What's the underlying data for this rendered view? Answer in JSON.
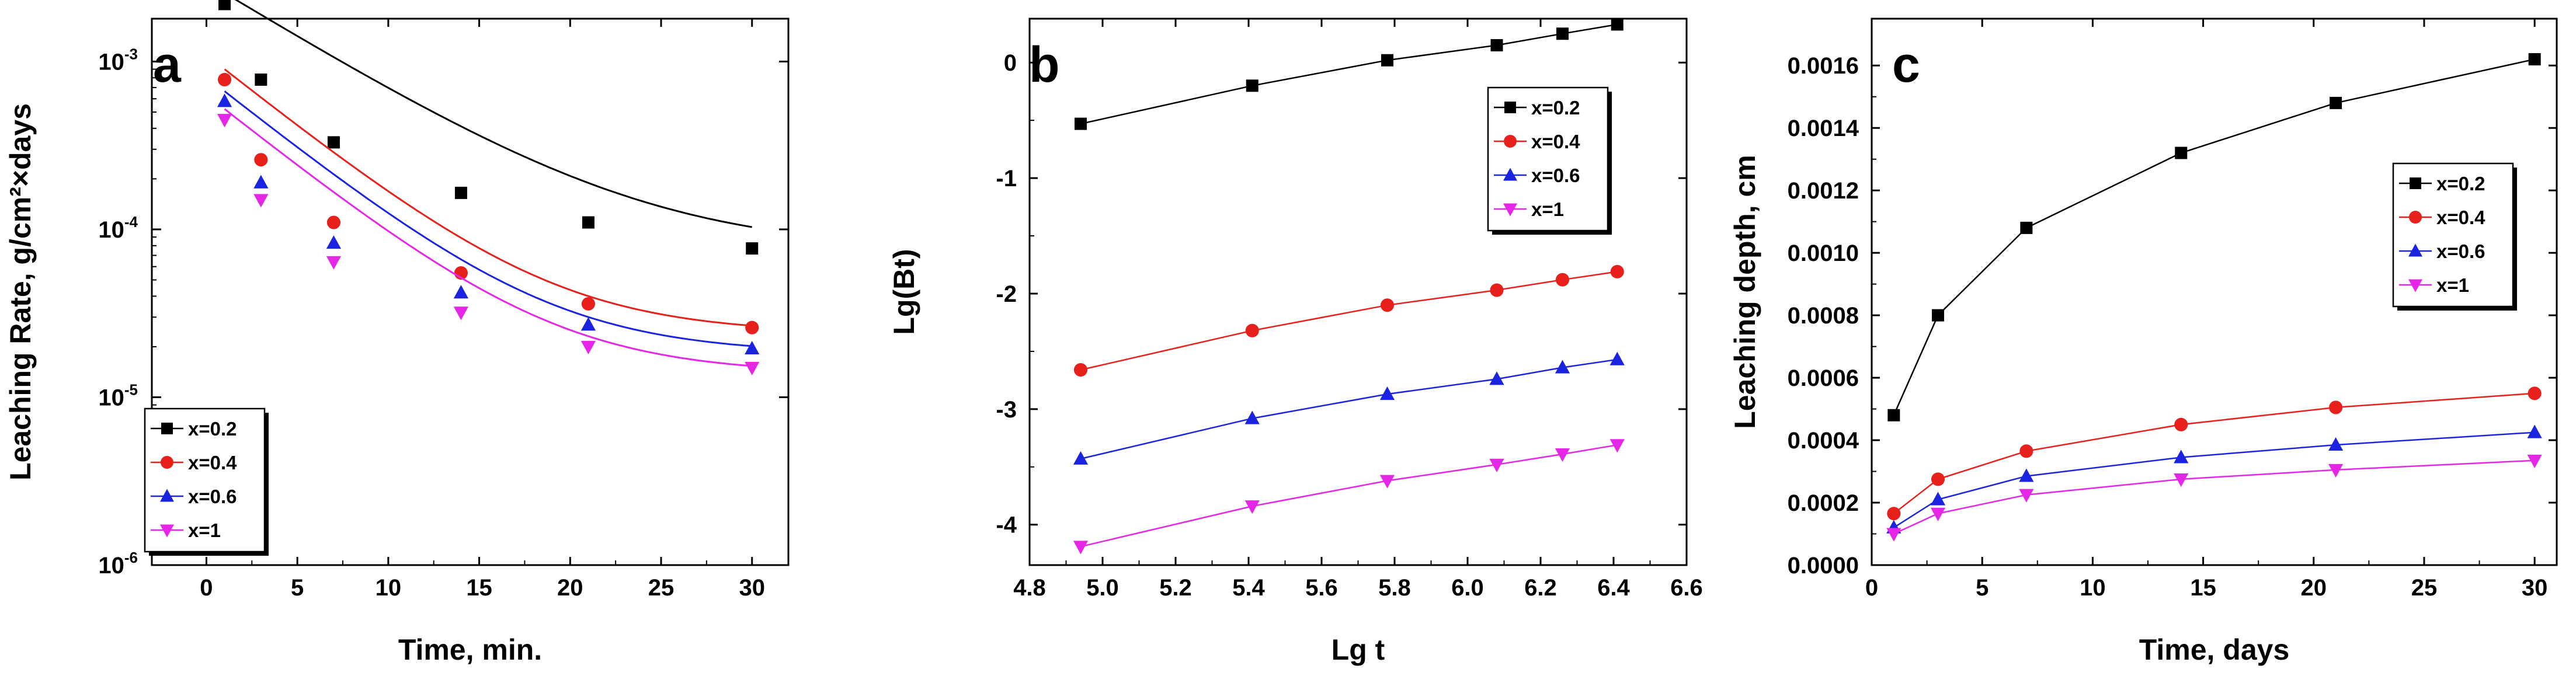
{
  "colors": {
    "x=0.2": "#000000",
    "x=0.4": "#e8201c",
    "x=0.6": "#1a24e0",
    "x=1": "#e626e6"
  },
  "chart_data": [
    {
      "panel": "a",
      "type": "scatter",
      "yscale": "log",
      "xlabel": "Time, min.",
      "ylabel": "Leaching Rate, g/cm²×days",
      "xlim": [
        -3,
        32
      ],
      "ylim": [
        1e-06,
        0.0018
      ],
      "xticks": [
        "0",
        "5",
        "10",
        "15",
        "20",
        "25",
        "30"
      ],
      "yticks": [
        {
          "value": 1e-06,
          "base": "10",
          "exp": "-6"
        },
        {
          "value": 1e-05,
          "base": "10",
          "exp": "-5"
        },
        {
          "value": 0.0001,
          "base": "10",
          "exp": "-4"
        },
        {
          "value": 0.001,
          "base": "10",
          "exp": "-3"
        }
      ],
      "legend_position": "bottom-left",
      "series": [
        {
          "name": "x=0.2",
          "marker": "square",
          "x": [
            1,
            3,
            7,
            14,
            21,
            30
          ],
          "y": [
            0.0022,
            0.00078,
            0.00033,
            0.000165,
            0.00011,
            7.7e-05
          ],
          "fit": {
            "a": 7.45e-05,
            "b": 0.0029,
            "tau": 6.5
          }
        },
        {
          "name": "x=0.4",
          "marker": "circle",
          "x": [
            1,
            3,
            7,
            14,
            21,
            30
          ],
          "y": [
            0.00078,
            0.00026,
            0.00011,
            5.5e-05,
            3.6e-05,
            2.6e-05
          ],
          "fit": {
            "a": 2.4e-05,
            "b": 0.00107,
            "tau": 5.0
          }
        },
        {
          "name": "x=0.6",
          "marker": "triangle-up",
          "x": [
            1,
            3,
            7,
            14,
            21,
            30
          ],
          "y": [
            0.00058,
            0.00019,
            8.3e-05,
            4.2e-05,
            2.7e-05,
            1.95e-05
          ],
          "fit": {
            "a": 1.82e-05,
            "b": 0.00079,
            "tau": 5.0
          }
        },
        {
          "name": "x=1",
          "marker": "triangle-down",
          "x": [
            1,
            3,
            7,
            14,
            21,
            30
          ],
          "y": [
            0.00045,
            0.00015,
            6.4e-05,
            3.2e-05,
            2e-05,
            1.5e-05
          ],
          "fit": {
            "a": 1.38e-05,
            "b": 0.00062,
            "tau": 5.0
          }
        }
      ]
    },
    {
      "panel": "b",
      "type": "line",
      "xlabel": "Lg t",
      "ylabel": "Lg(Bt)",
      "xlim": [
        4.8,
        6.6
      ],
      "ylim": [
        -4.35,
        0.38
      ],
      "xticks": [
        "4.8",
        "5.0",
        "5.2",
        "5.4",
        "5.6",
        "5.8",
        "6.0",
        "6.2",
        "6.4",
        "6.6"
      ],
      "yticks": [
        "-4",
        "-3",
        "-2",
        "-1",
        "0"
      ],
      "legend_position": "top-right",
      "series": [
        {
          "name": "x=0.2",
          "marker": "square",
          "x": [
            4.94,
            5.41,
            5.78,
            6.08,
            6.26,
            6.41
          ],
          "y": [
            -0.53,
            -0.2,
            0.02,
            0.15,
            0.25,
            0.33
          ]
        },
        {
          "name": "x=0.4",
          "marker": "circle",
          "x": [
            4.94,
            5.41,
            5.78,
            6.08,
            6.26,
            6.41
          ],
          "y": [
            -2.66,
            -2.32,
            -2.1,
            -1.97,
            -1.88,
            -1.81
          ]
        },
        {
          "name": "x=0.6",
          "marker": "triangle-up",
          "x": [
            4.94,
            5.41,
            5.78,
            6.08,
            6.26,
            6.41
          ],
          "y": [
            -3.43,
            -3.08,
            -2.87,
            -2.74,
            -2.64,
            -2.57
          ]
        },
        {
          "name": "x=1",
          "marker": "triangle-down",
          "x": [
            4.94,
            5.41,
            5.78,
            6.08,
            6.26,
            6.41
          ],
          "y": [
            -4.19,
            -3.84,
            -3.62,
            -3.48,
            -3.39,
            -3.31
          ]
        }
      ]
    },
    {
      "panel": "c",
      "type": "line",
      "xlabel": "Time, days",
      "ylabel": "Leaching depth, cm",
      "xlim": [
        0,
        31
      ],
      "ylim": [
        0,
        0.00175
      ],
      "xticks": [
        "0",
        "5",
        "10",
        "15",
        "20",
        "25",
        "30"
      ],
      "yticks": [
        "0.0000",
        "0.0002",
        "0.0004",
        "0.0006",
        "0.0008",
        "0.0010",
        "0.0012",
        "0.0014",
        "0.0016"
      ],
      "legend_position": "top-right",
      "series": [
        {
          "name": "x=0.2",
          "marker": "square",
          "x": [
            1,
            3,
            7,
            14,
            21,
            30
          ],
          "y": [
            0.00048,
            0.0008,
            0.00108,
            0.00132,
            0.00148,
            0.00162
          ]
        },
        {
          "name": "x=0.4",
          "marker": "circle",
          "x": [
            1,
            3,
            7,
            14,
            21,
            30
          ],
          "y": [
            0.000165,
            0.000275,
            0.000365,
            0.00045,
            0.000505,
            0.00055
          ]
        },
        {
          "name": "x=0.6",
          "marker": "triangle-up",
          "x": [
            1,
            3,
            7,
            14,
            21,
            30
          ],
          "y": [
            0.00012,
            0.00021,
            0.000285,
            0.000345,
            0.000385,
            0.000425
          ]
        },
        {
          "name": "x=1",
          "marker": "triangle-down",
          "x": [
            1,
            3,
            7,
            14,
            21,
            30
          ],
          "y": [
            0.0001,
            0.000165,
            0.000225,
            0.000275,
            0.000305,
            0.000335
          ]
        }
      ]
    }
  ]
}
